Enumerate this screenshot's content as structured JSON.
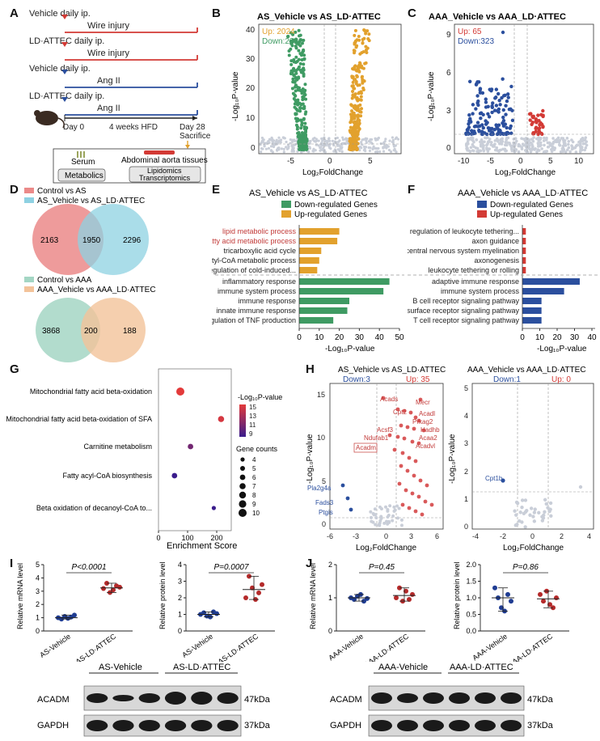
{
  "labels": {
    "A": "A",
    "B": "B",
    "C": "C",
    "D": "D",
    "E": "E",
    "F": "F",
    "G": "G",
    "H": "H",
    "I": "I",
    "J": "J"
  },
  "colors": {
    "green": "#3f9b63",
    "orange": "#e2a12d",
    "red": "#d33a35",
    "blue": "#2b4f9e",
    "gray": "#c9ced8",
    "pink": "#eb8a89",
    "cyan": "#8ed1e2",
    "sage": "#a4d6c4",
    "peach": "#f3c39a",
    "dkblue": "#1f3c92",
    "dkred": "#b42a2a"
  },
  "panelA": {
    "rows": [
      {
        "treatment": "Vehicle daily ip.",
        "model": "Wire injury",
        "color": "#d33a35"
      },
      {
        "treatment": "LD·ATTEC daily ip.",
        "model": "Wire injury",
        "color": "#d33a35"
      },
      {
        "treatment": "Vehicle daily ip.",
        "model": "Ang II",
        "color": "#2b4f9e"
      },
      {
        "treatment": "LD·ATTEC daily ip.",
        "model": "Ang II",
        "color": "#2b4f9e"
      }
    ],
    "day0": "Day 0",
    "hfd": "4 weeks HFD",
    "day28": "Day 28",
    "sacrifice": "Sacrifice",
    "serum": "Serum",
    "aorta": "Abdominal aorta tissues",
    "metabolics": "Metabolics",
    "lipidomics": "Lipidomics",
    "transcriptomics": "Transcriptomics"
  },
  "panelB": {
    "title": "AS_Vehicle vs AS_LD·ATTEC",
    "up": "Up: 2024",
    "down": "Down:2222",
    "xlabel": "Log₂FoldChange",
    "ylabel": "-Log₁₀P-value",
    "xticks": [
      "-5",
      "0",
      "5"
    ],
    "yticks": [
      "0",
      "10",
      "20",
      "30",
      "40"
    ]
  },
  "panelC": {
    "title": "AAA_Vehicle vs AAA_LD·ATTEC",
    "up": "Up: 65",
    "down": "Down:323",
    "xlabel": "Log₂FoldChange",
    "ylabel": "-Log₁₀P-value",
    "xticks": [
      "-10",
      "-5",
      "0",
      "5",
      "10"
    ],
    "yticks": [
      "0",
      "3",
      "6",
      "9"
    ]
  },
  "panelD": {
    "legend1": [
      {
        "label": "Control vs AS",
        "color": "#eb8a89"
      },
      {
        "label": "AS_Vehicle vs AS_LD·ATTEC",
        "color": "#8ed1e2"
      }
    ],
    "venn1": [
      "2163",
      "1950",
      "2296"
    ],
    "legend2": [
      {
        "label": "Control vs AAA",
        "color": "#a4d6c4"
      },
      {
        "label": "AAA_Vehicle vs AAA_LD·ATTEC",
        "color": "#f3c39a"
      }
    ],
    "venn2": [
      "3868",
      "200",
      "188"
    ]
  },
  "panelE": {
    "title": "AS_Vehicle vs AS_LD·ATTEC",
    "legend_down": "Down-regulated Genes",
    "legend_up": "Up-regulated Genes",
    "xlabel": "-Log₁₀P-value",
    "xticks": [
      "0",
      "10",
      "20",
      "30",
      "40",
      "50"
    ]
  },
  "panelF": {
    "title": "AAA_Vehicle vs AAA_LD·ATTEC",
    "legend_down": "Down-regulated Genes",
    "legend_up": "Up-regulated Genes",
    "xlabel": "-Log₁₀P-value",
    "xticks": [
      "0",
      "10",
      "20",
      "30",
      "40"
    ]
  },
  "panelG": {
    "legend_title": "-Log₁₀P-value",
    "color_ticks": [
      "15",
      "13",
      "11",
      "9"
    ],
    "size_title": "Gene counts",
    "size_ticks": [
      "4",
      "5",
      "6",
      "7",
      "8",
      "9",
      "10"
    ],
    "xlabel": "Enrichment Score",
    "xticks": [
      "0",
      "100",
      "200"
    ]
  },
  "panelH": {
    "left": {
      "title": "AS_Vehicle vs AS_LD·ATTEC",
      "down": "Down:3",
      "up": "Up: 35",
      "xticks": [
        "-6",
        "-3",
        "0",
        "3",
        "6"
      ],
      "yticks": [
        "0",
        "5",
        "10",
        "15"
      ],
      "genes_red": [
        "Acads",
        "Mecr",
        "Cpt2",
        "Acadl",
        "Prkag2",
        "Acsf3",
        "Hadhb",
        "Ndufab1",
        "Acaa2",
        "Acadm",
        "Acadvl"
      ],
      "genes_blue": [
        "Pla2g4a",
        "Fads3",
        "Ptgis"
      ]
    },
    "right": {
      "title": "AAA_Vehicle vs AAA_LD·ATTEC",
      "down": "Down:1",
      "up": "Up: 0",
      "xticks": [
        "-4",
        "-2",
        "0",
        "2",
        "4"
      ],
      "yticks": [
        "0",
        "1",
        "2",
        "3",
        "4",
        "5"
      ],
      "gene": "Cpt1b"
    },
    "xlabel": "Log₂FoldChange",
    "ylabel": "-Log₁₀P-value"
  },
  "panelI": {
    "mrna": {
      "ylabel": "Relative mRNA level",
      "p": "P<0.0001",
      "yticks": [
        "0",
        "1",
        "2",
        "3",
        "4",
        "5"
      ]
    },
    "protein": {
      "ylabel": "Relative protein level",
      "p": "P=0.0007",
      "yticks": [
        "0",
        "1",
        "2",
        "3",
        "4"
      ]
    },
    "groups": [
      "AS-Vehicle",
      "AS-LD·ATTEC"
    ],
    "blot": {
      "g1": "AS-Vehicle",
      "g2": "AS-LD·ATTEC",
      "rows": [
        {
          "name": "ACADM",
          "kda": "47kDa"
        },
        {
          "name": "GAPDH",
          "kda": "37kDa"
        }
      ]
    }
  },
  "panelJ": {
    "mrna": {
      "ylabel": "Relative mRNA level",
      "p": "P=0.45",
      "yticks": [
        "0",
        "1",
        "2"
      ]
    },
    "protein": {
      "ylabel": "Relative protein level",
      "p": "P=0.86",
      "yticks": [
        "0.0",
        "0.5",
        "1.0",
        "1.5",
        "2.0"
      ]
    },
    "groups": [
      "AAA-Vehicle",
      "AAA-LD·ATTEC"
    ],
    "blot": {
      "g1": "AAA-Vehicle",
      "g2": "AAA-LD·ATTEC",
      "rows": [
        {
          "name": "ACADM",
          "kda": "47kDa"
        },
        {
          "name": "GAPDH",
          "kda": "37kDa"
        }
      ]
    }
  },
  "chart_data": [
    {
      "id": "E",
      "type": "bar",
      "title": "AS_Vehicle vs AS_LD·ATTEC",
      "xlabel": "-Log₁₀P-value",
      "xlim": [
        0,
        50
      ],
      "series": [
        {
          "name": "Up-regulated Genes",
          "categories": [
            "lipid metabolic process",
            "fatty acid metabolic process",
            "tricarboxylic acid cycle",
            "acetyl-CoA metabolic process",
            "positive regulation of cold-induced..."
          ],
          "values": [
            20,
            19,
            11,
            10,
            9
          ]
        },
        {
          "name": "Down-regulated Genes",
          "categories": [
            "inflammatory response",
            "immune system process",
            "immune response",
            "innate immune response",
            "positive regulation of TNF production"
          ],
          "values": [
            45,
            42,
            25,
            24,
            17
          ]
        }
      ]
    },
    {
      "id": "F",
      "type": "bar",
      "title": "AAA_Vehicle vs AAA_LD·ATTEC",
      "xlabel": "-Log₁₀P-value",
      "xlim": [
        0,
        40
      ],
      "series": [
        {
          "name": "Up-regulated Genes",
          "categories": [
            "positive regulation of leukocyte tethering...",
            "axon guidance",
            "central nervous system myelination",
            "axonogenesis",
            "leukocyte tethering or rolling"
          ],
          "values": [
            2,
            2,
            2,
            2,
            2
          ]
        },
        {
          "name": "Down-regulated Genes",
          "categories": [
            "adaptive immune response",
            "immune system process",
            "B cell receptor signaling pathway",
            "cell surface receptor signaling pathway",
            "T cell receptor signaling pathway"
          ],
          "values": [
            33,
            24,
            11,
            11,
            11
          ]
        }
      ]
    },
    {
      "id": "G",
      "type": "scatter",
      "xlabel": "Enrichment Score",
      "xlim": [
        0,
        250
      ],
      "categories": [
        "Mitochondrial fatty acid beta-oxidation",
        "Mitochondrial fatty acid beta-oxidation of SFA",
        "Carnitine metabolism",
        "Fatty acyl-CoA biosynthesis",
        "Beta oxidation of decanoyl-CoA to..."
      ],
      "x": [
        75,
        215,
        110,
        55,
        190
      ],
      "pvalue": [
        15,
        14.5,
        11,
        9,
        9
      ],
      "gene_counts": [
        10,
        7,
        6,
        6,
        4
      ]
    },
    {
      "id": "I-mrna",
      "type": "scatter",
      "categories": [
        "AS-Vehicle",
        "AS-LD·ATTEC"
      ],
      "ylabel": "Relative mRNA level",
      "ylim": [
        0,
        5
      ],
      "series": [
        {
          "name": "AS-Vehicle",
          "values": [
            1.0,
            0.9,
            1.1,
            0.95,
            1.05,
            1.2
          ]
        },
        {
          "name": "AS-LD·ATTEC",
          "values": [
            3.2,
            3.6,
            2.9,
            3.1,
            3.4,
            3.3
          ]
        }
      ],
      "mean": [
        1.0,
        3.25
      ]
    },
    {
      "id": "I-protein",
      "type": "scatter",
      "categories": [
        "AS-Vehicle",
        "AS-LD·ATTEC"
      ],
      "ylabel": "Relative protein level",
      "ylim": [
        0,
        4
      ],
      "series": [
        {
          "name": "AS-Vehicle",
          "values": [
            1.0,
            1.1,
            0.9,
            0.85,
            1.15,
            1.05
          ]
        },
        {
          "name": "AS-LD·ATTEC",
          "values": [
            2.0,
            3.3,
            2.6,
            1.9,
            2.3,
            2.8
          ]
        }
      ],
      "mean": [
        1.0,
        2.5
      ]
    },
    {
      "id": "J-mrna",
      "type": "scatter",
      "categories": [
        "AAA-Vehicle",
        "AAA-LD·ATTEC"
      ],
      "ylabel": "Relative mRNA level",
      "ylim": [
        0,
        2
      ],
      "series": [
        {
          "name": "AAA-Vehicle",
          "values": [
            1.0,
            0.95,
            1.05,
            1.1,
            0.9,
            0.98
          ]
        },
        {
          "name": "AAA-LD·ATTEC",
          "values": [
            1.0,
            1.3,
            0.9,
            1.2,
            0.95,
            1.1
          ]
        }
      ],
      "mean": [
        1.0,
        1.07
      ]
    },
    {
      "id": "J-protein",
      "type": "scatter",
      "categories": [
        "AAA-Vehicle",
        "AAA-LD·ATTEC"
      ],
      "ylabel": "Relative protein level",
      "ylim": [
        0,
        2
      ],
      "series": [
        {
          "name": "AAA-Vehicle",
          "values": [
            1.3,
            1.0,
            0.7,
            0.6,
            1.1,
            0.9
          ]
        },
        {
          "name": "AAA-LD·ATTEC",
          "values": [
            1.1,
            0.9,
            1.2,
            0.8,
            0.7,
            1.0
          ]
        }
      ],
      "mean": [
        1.0,
        0.97
      ]
    }
  ]
}
